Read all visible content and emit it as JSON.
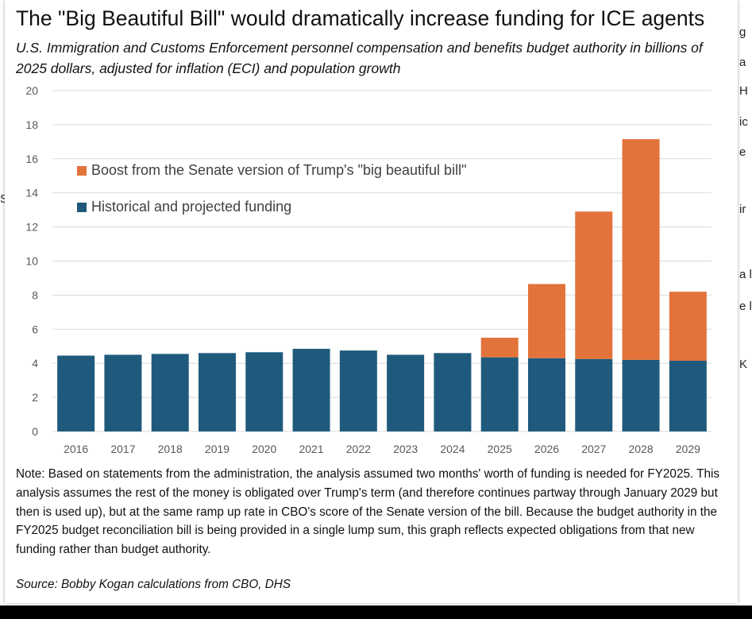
{
  "page": {
    "title": "The \"Big Beautiful Bill\" would dramatically increase funding for ICE agents",
    "subtitle": "U.S. Immigration and Customs Enforcement personnel compensation and benefits budget authority in billions of 2025 dollars, adjusted for inflation (ECI) and population growth",
    "note": "Note: Based on statements from the administration, the analysis assumed two months' worth of funding is needed for FY2025. This analysis assumes the rest of the money is obligated over Trump's term (and therefore continues partway through January 2029 but then is used up), but at the same ramp up rate in CBO's score of the Senate version of the bill. Because the budget authority in the FY2025 budget reconciliation bill is being provided in a single lump sum, this graph reflects expected obligations from that new funding rather than budget authority.",
    "source": "Source: Bobby Kogan calculations from CBO, DHS"
  },
  "background_fragments": {
    "right": [
      "g",
      "a",
      "H",
      "ic",
      "e",
      "ir",
      "a l",
      "e l",
      "K"
    ],
    "left": "S"
  },
  "colors": {
    "historical": "#1f5a7c",
    "boost": "#e2733a",
    "gridline": "#d9d9d9",
    "axis_text": "#595959"
  },
  "chart_data": {
    "type": "bar",
    "stacked": true,
    "categories": [
      "2016",
      "2017",
      "2018",
      "2019",
      "2020",
      "2021",
      "2022",
      "2023",
      "2024",
      "2025",
      "2026",
      "2027",
      "2028",
      "2029"
    ],
    "series": [
      {
        "name": "Historical and projected funding",
        "color": "#1f5a7c",
        "values": [
          4.45,
          4.5,
          4.55,
          4.6,
          4.65,
          4.85,
          4.75,
          4.5,
          4.6,
          4.35,
          4.3,
          4.25,
          4.2,
          4.15
        ]
      },
      {
        "name": "Boost from the Senate version of Trump's \"big beautiful bill\"",
        "color": "#e2733a",
        "values": [
          0,
          0,
          0,
          0,
          0,
          0,
          0,
          0,
          0,
          1.15,
          4.35,
          8.65,
          12.95,
          4.05
        ]
      }
    ],
    "legend_order": [
      1,
      0
    ],
    "legend_position": "top-left",
    "ylim": [
      0,
      20
    ],
    "yticks": [
      0,
      2,
      4,
      6,
      8,
      10,
      12,
      14,
      16,
      18,
      20
    ],
    "grid": true,
    "title": "",
    "xlabel": "",
    "ylabel": ""
  }
}
